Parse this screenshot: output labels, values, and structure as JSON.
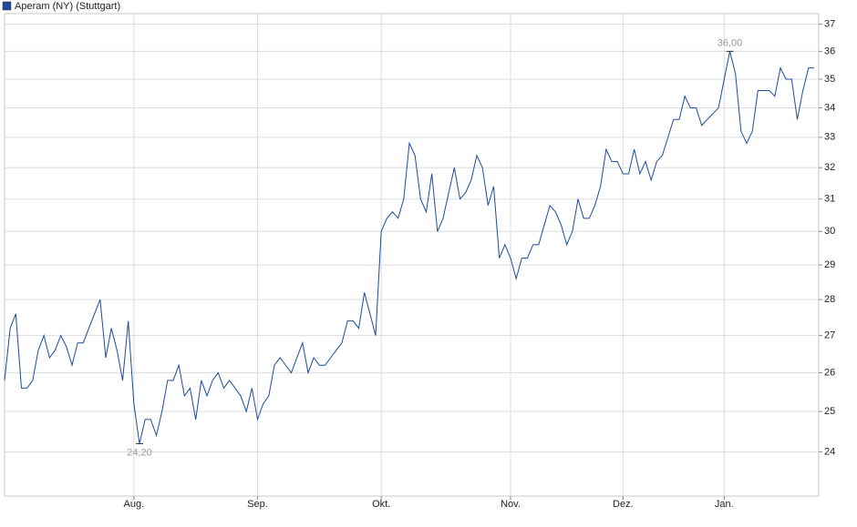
{
  "chart_data": {
    "type": "line",
    "log_y": true,
    "grid": true,
    "legend": "top-left",
    "categories": [
      null,
      null,
      null,
      null,
      null,
      null,
      null,
      null,
      null,
      null,
      null,
      null,
      null,
      null,
      null,
      null,
      null,
      null,
      null,
      null,
      null,
      null,
      null,
      "Aug.",
      null,
      null,
      null,
      null,
      null,
      null,
      null,
      null,
      null,
      null,
      null,
      null,
      null,
      null,
      null,
      null,
      null,
      null,
      null,
      null,
      null,
      "Sep.",
      null,
      null,
      null,
      null,
      null,
      null,
      null,
      null,
      null,
      null,
      null,
      null,
      null,
      null,
      null,
      null,
      null,
      null,
      null,
      null,
      null,
      "Okt.",
      null,
      null,
      null,
      null,
      null,
      null,
      null,
      null,
      null,
      null,
      null,
      null,
      null,
      null,
      null,
      null,
      null,
      null,
      null,
      null,
      null,
      null,
      "Nov.",
      null,
      null,
      null,
      null,
      null,
      null,
      null,
      null,
      null,
      null,
      null,
      null,
      null,
      null,
      null,
      null,
      null,
      null,
      null,
      "Dez.",
      null,
      null,
      null,
      null,
      null,
      null,
      null,
      null,
      null,
      null,
      null,
      null,
      null,
      null,
      null,
      null,
      null,
      "Jan.",
      null,
      null,
      null,
      null,
      null,
      null,
      null,
      null,
      null,
      null,
      null,
      null,
      null,
      null,
      null,
      null
    ],
    "series": [
      {
        "name": "Aperam (NY) (Stuttgart)",
        "color": "#1c4a9c",
        "values": [
          25.8,
          27.2,
          27.6,
          25.6,
          25.6,
          25.8,
          26.6,
          27.0,
          26.4,
          26.6,
          27.0,
          26.7,
          26.2,
          26.8,
          26.8,
          27.2,
          27.6,
          28.0,
          26.4,
          27.2,
          26.6,
          25.8,
          27.4,
          25.2,
          24.2,
          24.8,
          24.8,
          24.4,
          25.0,
          25.8,
          25.8,
          26.2,
          25.4,
          25.6,
          24.8,
          25.8,
          25.4,
          25.8,
          26.0,
          25.6,
          25.8,
          25.6,
          25.4,
          25.0,
          25.6,
          24.8,
          25.2,
          25.4,
          26.2,
          26.4,
          26.2,
          26.0,
          26.4,
          26.8,
          26.0,
          26.4,
          26.2,
          26.2,
          26.4,
          26.6,
          26.8,
          27.4,
          27.4,
          27.2,
          28.2,
          27.6,
          27.0,
          30.0,
          30.4,
          30.6,
          30.4,
          31.0,
          32.8,
          32.4,
          31.0,
          30.6,
          31.8,
          30.0,
          30.4,
          31.2,
          32.0,
          31.0,
          31.2,
          31.6,
          32.4,
          32.0,
          30.8,
          31.4,
          29.2,
          29.6,
          29.2,
          28.6,
          29.2,
          29.2,
          29.6,
          29.6,
          30.2,
          30.8,
          30.6,
          30.2,
          29.6,
          30.0,
          31.0,
          30.4,
          30.4,
          30.8,
          31.4,
          32.6,
          32.2,
          32.2,
          31.8,
          31.8,
          32.6,
          31.8,
          32.2,
          31.6,
          32.2,
          32.4,
          33.0,
          33.6,
          33.6,
          34.4,
          34.0,
          34.0,
          33.4,
          33.6,
          33.8,
          34.0,
          35.0,
          36.0,
          35.2,
          33.2,
          32.8,
          33.2,
          34.6,
          34.6,
          34.6,
          34.4,
          35.4,
          35.0,
          35.0,
          33.6,
          34.6,
          35.4,
          35.4
        ],
        "value_labels": [
          null,
          null,
          null,
          null,
          null,
          null,
          null,
          null,
          null,
          null,
          null,
          null,
          null,
          null,
          null,
          null,
          null,
          null,
          null,
          null,
          null,
          null,
          null,
          null,
          "24,20",
          null,
          null,
          null,
          null,
          null,
          null,
          null,
          null,
          null,
          null,
          null,
          null,
          null,
          null,
          null,
          null,
          null,
          null,
          null,
          null,
          null,
          null,
          null,
          null,
          null,
          null,
          null,
          null,
          null,
          null,
          null,
          null,
          null,
          null,
          null,
          null,
          null,
          null,
          null,
          null,
          null,
          null,
          null,
          null,
          null,
          null,
          null,
          null,
          null,
          null,
          null,
          null,
          null,
          null,
          null,
          null,
          null,
          null,
          null,
          null,
          null,
          null,
          null,
          null,
          null,
          null,
          null,
          null,
          null,
          null,
          null,
          null,
          null,
          null,
          null,
          null,
          null,
          null,
          null,
          null,
          null,
          null,
          null,
          null,
          null,
          null,
          null,
          null,
          null,
          null,
          null,
          null,
          null,
          null,
          null,
          null,
          null,
          null,
          null,
          null,
          null,
          null,
          null,
          null,
          "36,00",
          null,
          null,
          null,
          null,
          null,
          null,
          null,
          null,
          null,
          null,
          null,
          null,
          null,
          null,
          null
        ]
      }
    ],
    "ylim": [
      22.95,
      37.4
    ],
    "yticks": [
      24,
      25,
      26,
      27,
      28,
      29,
      30,
      31,
      32,
      33,
      34,
      35,
      36,
      37
    ]
  }
}
